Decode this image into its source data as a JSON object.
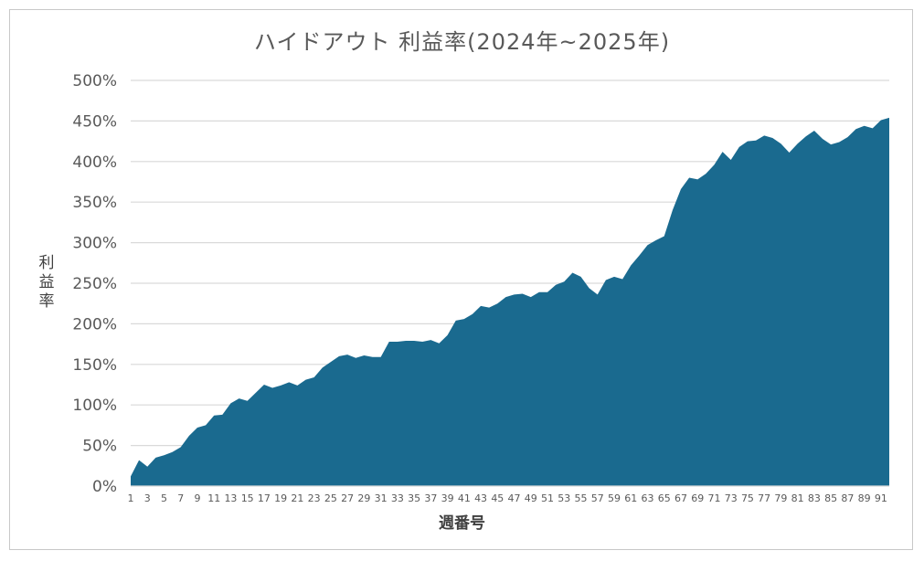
{
  "chart_data": {
    "type": "area",
    "title": "ハイドアウト 利益率(2024年~2025年)",
    "xlabel": "週番号",
    "ylabel": "利益率",
    "ylim": [
      0,
      500
    ],
    "y_ticks": [
      "0%",
      "50%",
      "100%",
      "150%",
      "200%",
      "250%",
      "300%",
      "350%",
      "400%",
      "450%",
      "500%"
    ],
    "x_ticks": [
      "1",
      "3",
      "5",
      "7",
      "9",
      "11",
      "13",
      "15",
      "17",
      "19",
      "21",
      "23",
      "25",
      "27",
      "29",
      "31",
      "33",
      "35",
      "37",
      "39",
      "41",
      "43",
      "45",
      "47",
      "49",
      "51",
      "53",
      "55",
      "57",
      "59",
      "61",
      "63",
      "65",
      "67",
      "69",
      "71",
      "73",
      "75",
      "77",
      "79",
      "81",
      "83",
      "85",
      "87",
      "89",
      "91"
    ],
    "grid": true,
    "color": "#1a6a8f",
    "x": [
      1,
      2,
      3,
      4,
      5,
      6,
      7,
      8,
      9,
      10,
      11,
      12,
      13,
      14,
      15,
      16,
      17,
      18,
      19,
      20,
      21,
      22,
      23,
      24,
      25,
      26,
      27,
      28,
      29,
      30,
      31,
      32,
      33,
      34,
      35,
      36,
      37,
      38,
      39,
      40,
      41,
      42,
      43,
      44,
      45,
      46,
      47,
      48,
      49,
      50,
      51,
      52,
      53,
      54,
      55,
      56,
      57,
      58,
      59,
      60,
      61,
      62,
      63,
      64,
      65,
      66,
      67,
      68,
      69,
      70,
      71,
      72,
      73,
      74,
      75,
      76,
      77,
      78,
      79,
      80,
      81,
      82,
      83,
      84,
      85,
      86,
      87,
      88,
      89,
      90,
      91,
      92
    ],
    "values": [
      12,
      32,
      24,
      35,
      38,
      42,
      48,
      62,
      72,
      75,
      87,
      88,
      102,
      108,
      105,
      115,
      125,
      121,
      124,
      128,
      124,
      131,
      134,
      146,
      153,
      160,
      162,
      158,
      161,
      159,
      159,
      178,
      178,
      179,
      179,
      178,
      180,
      176,
      186,
      204,
      206,
      212,
      222,
      220,
      225,
      233,
      236,
      237,
      233,
      239,
      239,
      248,
      252,
      263,
      258,
      244,
      236,
      254,
      258,
      255,
      272,
      284,
      297,
      303,
      308,
      340,
      366,
      380,
      378,
      385,
      396,
      412,
      402,
      418,
      425,
      426,
      432,
      429,
      422,
      411,
      422,
      431,
      438,
      428,
      421,
      424,
      430,
      440,
      444,
      441,
      451,
      454
    ]
  }
}
